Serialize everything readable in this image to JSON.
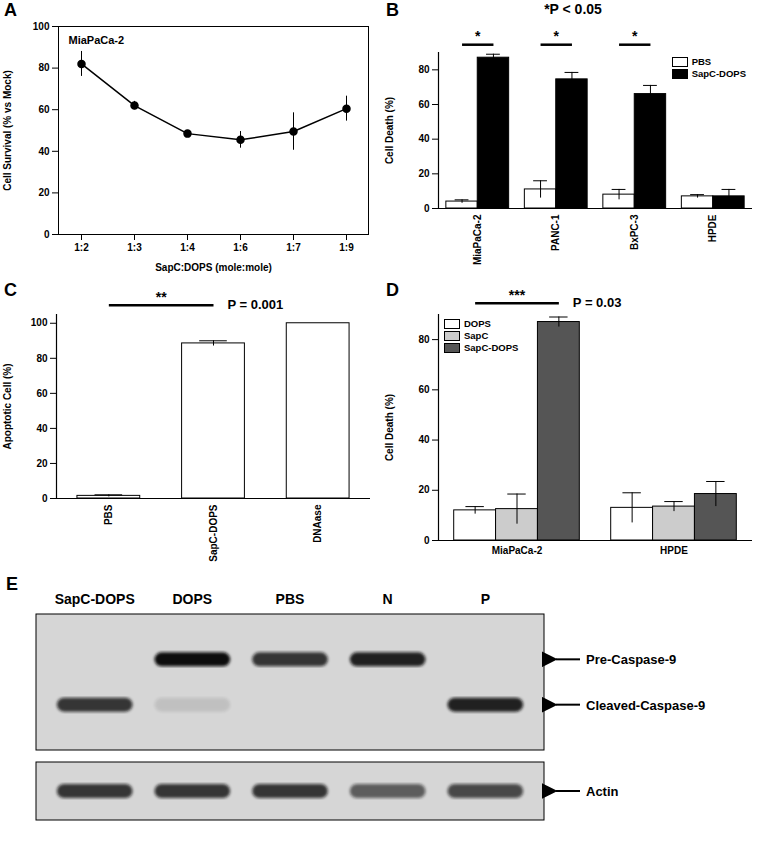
{
  "chart_data": [
    {
      "panel": "A",
      "type": "line",
      "annotation": "MiaPaCa-2",
      "x_label": "SapC:DOPS (mole:mole)",
      "y_label": "Cell Survival (% vs Mock)",
      "categories": [
        "1:2",
        "1:3",
        "1:4",
        "1:6",
        "1:7",
        "1:9"
      ],
      "values": [
        82,
        62,
        48.5,
        45.5,
        49.5,
        60.5
      ],
      "errors": [
        6,
        2,
        1.5,
        4,
        9,
        6
      ],
      "color": "#000000",
      "marker": "circle",
      "ylim": [
        0,
        100
      ],
      "yticks": [
        0,
        20,
        40,
        60,
        80,
        100
      ],
      "grid": false
    },
    {
      "panel": "B",
      "type": "bar",
      "title": "*P < 0.05",
      "y_label": "Cell Death (%)",
      "categories": [
        "MiaPaCa-2",
        "PANC-1",
        "BxPC-3",
        "HPDE"
      ],
      "series": [
        {
          "name": "PBS",
          "color": "#ffffff",
          "values": [
            4,
            11,
            8,
            7
          ],
          "errors": [
            1,
            5,
            3,
            1
          ]
        },
        {
          "name": "SapC-DOPS",
          "color": "#000000",
          "values": [
            87,
            74.5,
            66,
            7
          ],
          "errors": [
            2,
            4,
            5,
            4
          ]
        }
      ],
      "annotations": [
        {
          "text": "*",
          "from": "MiaPaCa-2",
          "to": "MiaPaCa-2"
        },
        {
          "text": "*",
          "from": "PANC-1",
          "to": "PANC-1"
        },
        {
          "text": "*",
          "from": "BxPC-3",
          "to": "BxPC-3"
        }
      ],
      "ylim": [
        0,
        90
      ],
      "yticks": [
        0,
        20,
        40,
        60,
        80
      ],
      "legend": "top-right",
      "grid": false
    },
    {
      "panel": "C",
      "type": "bar",
      "y_label": "Apoptotic Cell (%)",
      "categories": [
        "PBS",
        "SapC-DOPS",
        "DNAase"
      ],
      "values": [
        1.5,
        88.5,
        100
      ],
      "errors": [
        0.6,
        1.5,
        0
      ],
      "color": "#ffffff",
      "annotations": [
        {
          "text": "**",
          "label": "P = 0.001",
          "from": "PBS",
          "to": "SapC-DOPS"
        }
      ],
      "ylim": [
        0,
        105
      ],
      "yticks": [
        0,
        20,
        40,
        60,
        80,
        100
      ],
      "grid": false
    },
    {
      "panel": "D",
      "type": "bar",
      "y_label": "Cell Death (%)",
      "categories": [
        "MiaPaCa-2",
        "HPDE"
      ],
      "series": [
        {
          "name": "DOPS",
          "color": "#ffffff",
          "values": [
            12,
            13
          ],
          "errors": [
            1.5,
            6
          ]
        },
        {
          "name": "SapC",
          "color": "#cccccc",
          "values": [
            12.5,
            13.5
          ],
          "errors": [
            6,
            2
          ]
        },
        {
          "name": "SapC-DOPS",
          "color": "#555555",
          "values": [
            87,
            18.5
          ],
          "errors": [
            2,
            5
          ]
        }
      ],
      "annotations": [
        {
          "text": "***",
          "label": "P = 0.03",
          "from": "MiaPaCa-2",
          "to": "MiaPaCa-2"
        }
      ],
      "ylim": [
        0,
        90
      ],
      "yticks": [
        0,
        20,
        40,
        60,
        80
      ],
      "legend": "top-left",
      "grid": false
    },
    {
      "panel": "E",
      "type": "blot",
      "categories": [
        "SapC-DOPS",
        "DOPS",
        "PBS",
        "N",
        "P"
      ],
      "series": [
        {
          "name": "Pre-Caspase-9",
          "values": [
            0,
            1,
            0.8,
            0.9,
            0
          ]
        },
        {
          "name": "Cleaved-Caspase-9",
          "values": [
            0.8,
            0.1,
            0,
            0,
            0.9
          ]
        },
        {
          "name": "Actin",
          "values": [
            0.8,
            0.8,
            0.8,
            0.6,
            0.7
          ]
        }
      ]
    }
  ]
}
